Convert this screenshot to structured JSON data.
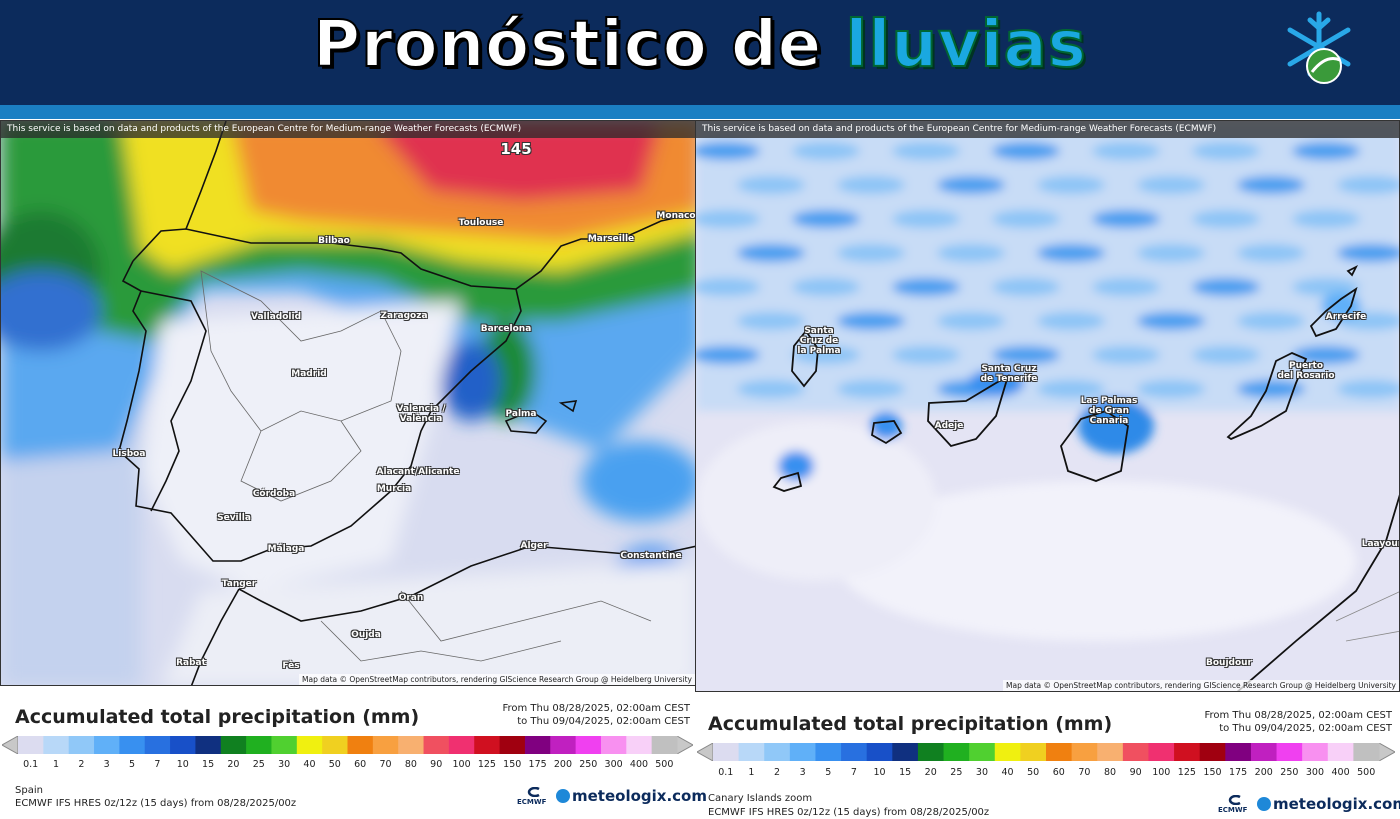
{
  "header": {
    "title_main": "Pronóstico de",
    "title_accent": "lluvias"
  },
  "notice": "This service is based on data and products of the European Centre for Medium-range Weather Forecasts (ECMWF)",
  "attribution": "Map data © OpenStreetMap contributors, rendering GIScience Research Group @ Heidelberg University",
  "legend": {
    "title": "Accumulated total precipitation (mm)",
    "from": "From Thu 08/28/2025, 02:00am CEST",
    "to": "to Thu 09/04/2025, 02:00am CEST",
    "values": [
      0.1,
      1,
      2,
      3,
      5,
      7,
      10,
      15,
      20,
      25,
      30,
      40,
      50,
      60,
      70,
      80,
      90,
      100,
      125,
      150,
      175,
      200,
      250,
      300,
      400,
      500
    ],
    "colors": [
      "#dcdcf0",
      "#b8d8f8",
      "#90c8f8",
      "#60b0f8",
      "#3890f0",
      "#2870e0",
      "#1850c8",
      "#103080",
      "#108020",
      "#20b020",
      "#50d030",
      "#f0f010",
      "#f0d020",
      "#f08010",
      "#f8a040",
      "#f8b070",
      "#f05060",
      "#f03070",
      "#d01020",
      "#a00010",
      "#800080",
      "#c020c0",
      "#f040f0",
      "#f890f0",
      "#f8d0f8",
      "#c0c0c0"
    ]
  },
  "model": "ECMWF IFS HRES 0z/12z (15 days) from 08/28/2025/00z",
  "logos": {
    "ecmwf": "ECMWF",
    "meteologix": "meteologix.com"
  },
  "panels": [
    {
      "region": "Spain",
      "labels": [
        "145",
        "Bilbao",
        "Toulouse",
        "Marseille",
        "Monaco",
        "Valladolid",
        "Zaragoza",
        "Barcelona",
        "Madrid",
        "Valencia /\nValència",
        "Palma",
        "Lisboa",
        "Alacant/Alicante",
        "Murcia",
        "Córdoba",
        "Sevilla",
        "Málaga",
        "Alger",
        "Constantine",
        "Oran",
        "Tanger",
        "Rabat",
        "Fès",
        "Oujda"
      ]
    },
    {
      "region": "Canary Islands zoom",
      "labels": [
        "Santa\nCruz de\nla Palma",
        "Santa Cruz\nde Tenerife",
        "Las Palmas\nde Gran\nCanaria",
        "Adeje",
        "Puerto\ndel Rosario",
        "Arrecife",
        "Boujdour",
        "Laayoune"
      ]
    }
  ]
}
